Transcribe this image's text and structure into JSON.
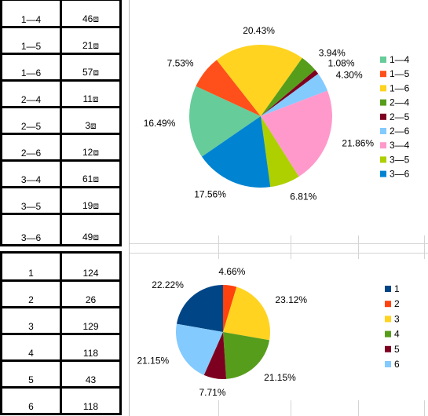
{
  "sheet": {
    "top_table": [
      {
        "label": "1—4",
        "value": "46⧈"
      },
      {
        "label": "1—5",
        "value": "21⧈"
      },
      {
        "label": "1—6",
        "value": "57⧈"
      },
      {
        "label": "2—4",
        "value": "11⧈"
      },
      {
        "label": "2—5",
        "value": "3⧈"
      },
      {
        "label": "2—6",
        "value": "12⧈"
      },
      {
        "label": "3—4",
        "value": "61⧈"
      },
      {
        "label": "3—5",
        "value": "19⧈"
      },
      {
        "label": "3—6",
        "value": "49⧈"
      }
    ],
    "bottom_table": [
      {
        "label": "1",
        "value": "124"
      },
      {
        "label": "2",
        "value": "26"
      },
      {
        "label": "3",
        "value": "129"
      },
      {
        "label": "4",
        "value": "118"
      },
      {
        "label": "5",
        "value": "43"
      },
      {
        "label": "6",
        "value": "118"
      }
    ]
  },
  "chart_data": [
    {
      "type": "pie",
      "title": "",
      "legend_position": "right",
      "slices": [
        {
          "name": "1—4",
          "value": 16.49,
          "label": "16.49%",
          "color": "#66cc99"
        },
        {
          "name": "1—5",
          "value": 7.53,
          "label": "7.53%",
          "color": "#ff4f1a"
        },
        {
          "name": "1—6",
          "value": 20.43,
          "label": "20.43%",
          "color": "#ffd320"
        },
        {
          "name": "2—4",
          "value": 3.94,
          "label": "3.94%",
          "color": "#579d1c"
        },
        {
          "name": "2—5",
          "value": 1.08,
          "label": "1.08%",
          "color": "#7e0021"
        },
        {
          "name": "2—6",
          "value": 4.3,
          "label": "4.30%",
          "color": "#83caff"
        },
        {
          "name": "3—4",
          "value": 21.86,
          "label": "21.86%",
          "color": "#ff99cc"
        },
        {
          "name": "3—5",
          "value": 6.81,
          "label": "6.81%",
          "color": "#aecf00"
        },
        {
          "name": "3—6",
          "value": 17.56,
          "label": "17.56%",
          "color": "#0084d1"
        }
      ]
    },
    {
      "type": "pie",
      "title": "",
      "legend_position": "right",
      "slices": [
        {
          "name": "1",
          "value": 22.22,
          "label": "22.22%",
          "color": "#004586"
        },
        {
          "name": "2",
          "value": 4.66,
          "label": "4.66%",
          "color": "#ff420e"
        },
        {
          "name": "3",
          "value": 23.12,
          "label": "23.12%",
          "color": "#ffd320"
        },
        {
          "name": "4",
          "value": 21.15,
          "label": "21.15%",
          "color": "#579d1c"
        },
        {
          "name": "5",
          "value": 7.71,
          "label": "7.71%",
          "color": "#7e0021"
        },
        {
          "name": "6",
          "value": 21.15,
          "label": "21.15%",
          "color": "#83caff"
        }
      ]
    }
  ]
}
